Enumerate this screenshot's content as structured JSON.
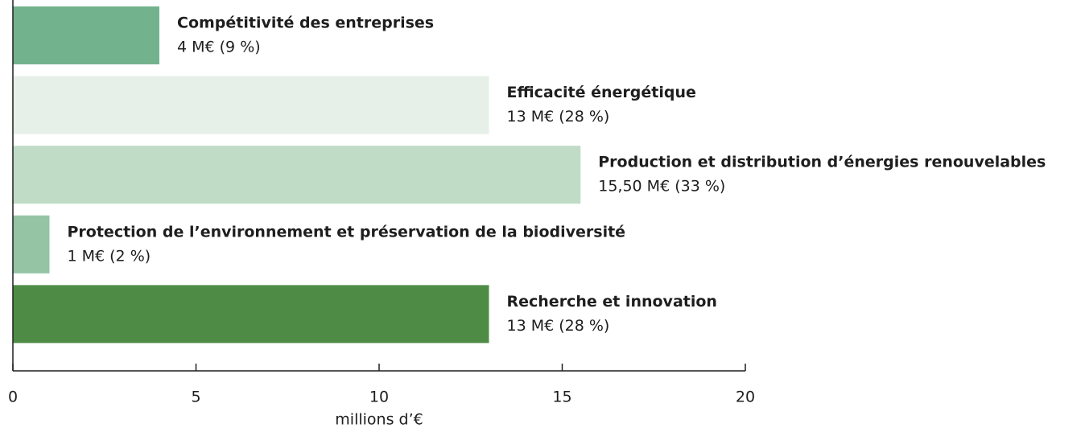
{
  "chart_data": {
    "type": "barh",
    "categories": [
      "Compétitivité des entreprises",
      "Efficacité énergétique",
      "Production et distribution d’énergies renouvelables",
      "Protection de l’environnement et préservation de la biodiversité",
      "Recherche et innovation"
    ],
    "values": [
      4,
      13,
      15.5,
      1,
      13
    ],
    "value_labels": [
      "4 M€ (9 %)",
      "13 M€ (28 %)",
      "15,50 M€ (33 %)",
      "1 M€ (2 %)",
      "13 M€ (28 %)"
    ],
    "colors": [
      "#72b38d",
      "#e6f0e8",
      "#c0dbc6",
      "#95c4a5",
      "#4e8c46"
    ],
    "xlim": [
      0,
      20
    ],
    "xticks": [
      0,
      5,
      10,
      15,
      20
    ],
    "xlabel": "millions d’€"
  }
}
